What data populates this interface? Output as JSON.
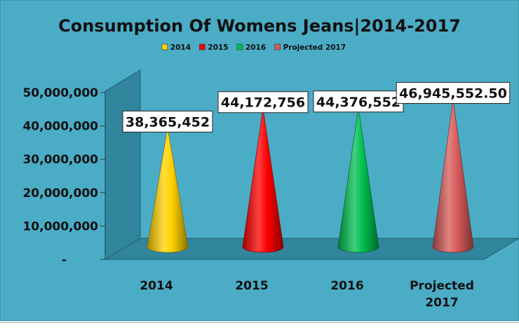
{
  "chart_data": {
    "type": "bar",
    "title": "Consumption Of Womens Jeans|2014-2017",
    "categories": [
      "2014",
      "2015",
      "2016",
      "Projected 2017"
    ],
    "category_lines": [
      [
        "2014"
      ],
      [
        "2015"
      ],
      [
        "2016"
      ],
      [
        "Projected",
        "2017"
      ]
    ],
    "values": [
      38365452,
      44172756,
      44376552,
      46945552.5
    ],
    "data_labels": [
      "38,365,452",
      "44,172,756",
      "44,376,552",
      "46,945,552.50"
    ],
    "legend": [
      "2014",
      "2015",
      "2016",
      "Projected 2017"
    ],
    "legend_position": "top",
    "colors": [
      "#ffd200",
      "#ff0000",
      "#00c050",
      "#d85a5a"
    ],
    "y_ticks": [
      {
        "value": 0,
        "label": "-"
      },
      {
        "value": 10000000,
        "label": "10,000,000"
      },
      {
        "value": 20000000,
        "label": "20,000,000"
      },
      {
        "value": 30000000,
        "label": "30,000,000"
      },
      {
        "value": 40000000,
        "label": "40,000,000"
      },
      {
        "value": 50000000,
        "label": "50,000,000"
      }
    ],
    "ylim": [
      0,
      50000000
    ],
    "grid": false,
    "mark_shape": "cone",
    "background_color": "#4bacc6"
  }
}
